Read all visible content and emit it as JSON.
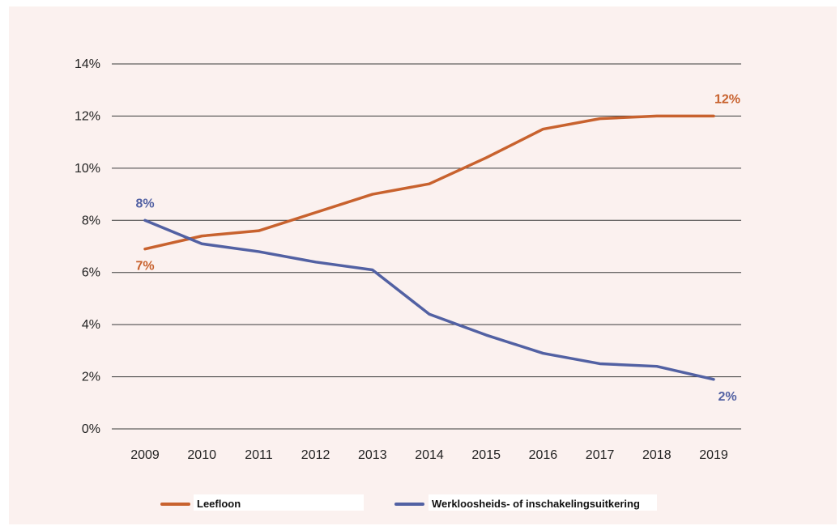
{
  "chart_data": {
    "type": "line",
    "x": [
      "2009",
      "2010",
      "2011",
      "2012",
      "2013",
      "2014",
      "2015",
      "2016",
      "2017",
      "2018",
      "2019"
    ],
    "ylim": [
      0,
      14
    ],
    "yticks": [
      0,
      2,
      4,
      6,
      8,
      10,
      12,
      14
    ],
    "ytick_labels": [
      "0%",
      "2%",
      "4%",
      "6%",
      "8%",
      "10%",
      "12%",
      "14%"
    ],
    "grid": "horizontal",
    "legend_position": "bottom",
    "series": [
      {
        "name": "Leefloon",
        "color": "#c8622e",
        "values": [
          6.9,
          7.4,
          7.6,
          8.3,
          9.0,
          9.4,
          10.4,
          11.5,
          11.9,
          12.0,
          12.0
        ],
        "labels": [
          {
            "index": 0,
            "text": "7%",
            "pos": "below"
          },
          {
            "index": 10,
            "text": "12%",
            "pos": "above"
          }
        ]
      },
      {
        "name": "Werkloosheids- of inschakelingsuitkering",
        "color": "#5261a3",
        "values": [
          8.0,
          7.1,
          6.8,
          6.4,
          6.1,
          4.4,
          3.6,
          2.9,
          2.5,
          2.4,
          1.9
        ],
        "labels": [
          {
            "index": 0,
            "text": "8%",
            "pos": "above"
          },
          {
            "index": 10,
            "text": "2%",
            "pos": "below"
          }
        ]
      }
    ]
  }
}
